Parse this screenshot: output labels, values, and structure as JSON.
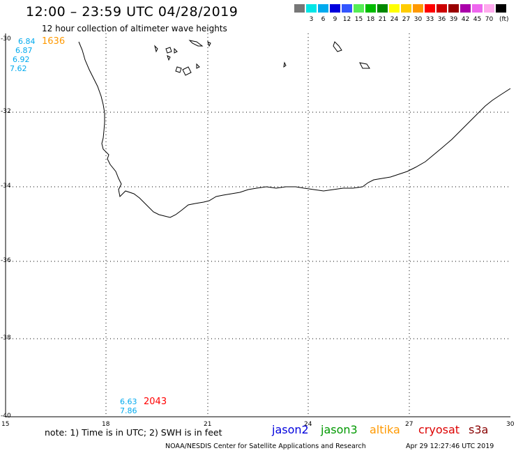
{
  "header": {
    "title": "12:00 – 23:59 UTC 04/28/2019",
    "subtitle": "12 hour collection of altimeter wave heights"
  },
  "scale": {
    "unit": "(ft)",
    "bins": [
      {
        "label": "",
        "color": "#777777"
      },
      {
        "label": "3",
        "color": "#00e6e6"
      },
      {
        "label": "6",
        "color": "#00aaee"
      },
      {
        "label": "9",
        "color": "#0000dd"
      },
      {
        "label": "12",
        "color": "#3355ff"
      },
      {
        "label": "15",
        "color": "#55ee55"
      },
      {
        "label": "18",
        "color": "#00bb00"
      },
      {
        "label": "21",
        "color": "#008800"
      },
      {
        "label": "24",
        "color": "#ffff00"
      },
      {
        "label": "27",
        "color": "#ffcc00"
      },
      {
        "label": "30",
        "color": "#ff9900"
      },
      {
        "label": "33",
        "color": "#ff0000"
      },
      {
        "label": "36",
        "color": "#cc0000"
      },
      {
        "label": "39",
        "color": "#990000"
      },
      {
        "label": "42",
        "color": "#aa00aa"
      },
      {
        "label": "45",
        "color": "#ee66ee"
      },
      {
        "label": "70",
        "color": "#ffaaee"
      },
      {
        "label": "",
        "color": "#000000"
      }
    ]
  },
  "map": {
    "lat_labels": [
      "-30",
      "-32",
      "-34",
      "-36",
      "-38",
      "-40"
    ],
    "lon_labels": [
      "15",
      "18",
      "21",
      "24",
      "27",
      "30"
    ]
  },
  "observations": {
    "group1_values": [
      "6.84",
      "6.87",
      "6.92",
      "7.62"
    ],
    "group1_time": "1636",
    "group2_values": [
      "6.63",
      "7.86"
    ],
    "group2_time": "2043",
    "value_color": "#00aaee",
    "time1_color": "#ff9900",
    "time2_color": "#ff0000"
  },
  "footer": {
    "note": "note: 1) Time is in UTC; 2) SWH is in feet",
    "satellites": [
      {
        "name": "jason2",
        "color": "#0000dd"
      },
      {
        "name": "jason3",
        "color": "#009900"
      },
      {
        "name": "altika",
        "color": "#ff9900"
      },
      {
        "name": "cryosat",
        "color": "#dd0000"
      },
      {
        "name": "s3a",
        "color": "#880000"
      }
    ],
    "credit": "NOAA/NESDIS Center for Satellite Applications and Research",
    "timestamp": "Apr 29 12:27:46 UTC 2019"
  }
}
